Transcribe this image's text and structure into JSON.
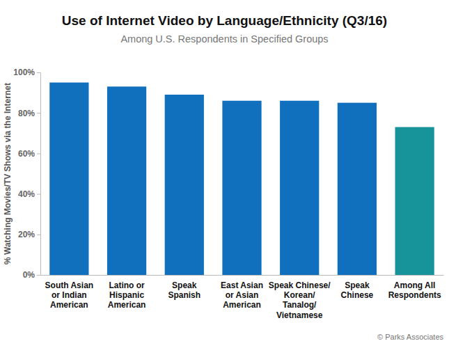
{
  "chart_data": {
    "type": "bar",
    "title": "Use of Internet Video by Language/Ethnicity (Q3/16)",
    "subtitle": "Among U.S. Respondents in Specified Groups",
    "y_label": "% Watching Movies/TV Shows via the Internet",
    "source": "© Parks Associates",
    "categories": [
      "South Asian\nor Indian\nAmerican",
      "Latino or\nHispanic\nAmerican",
      "Speak\nSpanish",
      "East Asian\nor Asian\nAmerican",
      "Speak Chinese/\nKorean/\nTanalog/\nVietnamese",
      "Speak\nChinese",
      "Among All\nRespondents"
    ],
    "values": [
      95,
      93,
      89,
      86,
      86,
      85,
      73
    ],
    "colors": [
      "#1170be",
      "#1170be",
      "#1170be",
      "#1170be",
      "#1170be",
      "#1170be",
      "#17939a"
    ],
    "ylim": [
      0,
      100
    ],
    "yticks": [
      {
        "value": 0,
        "label": "0%"
      },
      {
        "value": 20,
        "label": "20%"
      },
      {
        "value": 40,
        "label": "40%"
      },
      {
        "value": 60,
        "label": "60%"
      },
      {
        "value": 80,
        "label": "80%"
      },
      {
        "value": 100,
        "label": "100%"
      }
    ],
    "grid": false
  }
}
